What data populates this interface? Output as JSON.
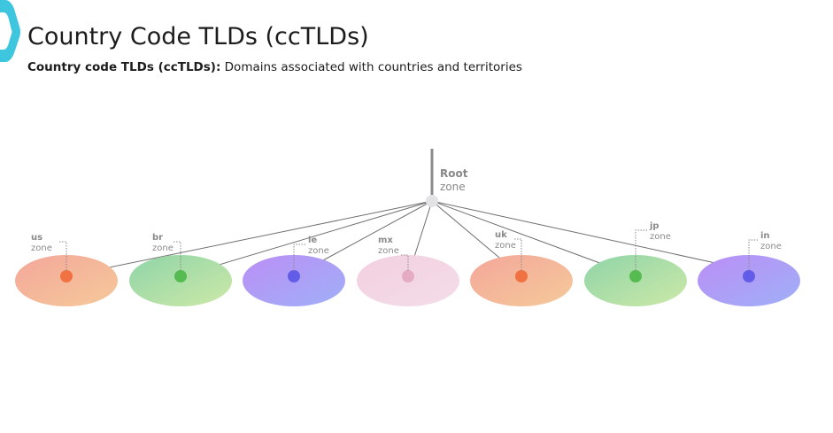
{
  "header": {
    "title": "Country Code TLDs (ccTLDs)",
    "subtitle_bold": "Country code TLDs (ccTLDs):",
    "subtitle_rest": " Domains associated with countries and territories"
  },
  "root": {
    "name": "Root",
    "zone": "zone"
  },
  "zones": [
    {
      "name": "us",
      "zone": "zone",
      "scheme": "orange"
    },
    {
      "name": "br",
      "zone": "zone",
      "scheme": "green"
    },
    {
      "name": "ie",
      "zone": "zone",
      "scheme": "purple"
    },
    {
      "name": "mx",
      "zone": "zone",
      "scheme": "pink"
    },
    {
      "name": "uk",
      "zone": "zone",
      "scheme": "orange"
    },
    {
      "name": "jp",
      "zone": "zone",
      "scheme": "green"
    },
    {
      "name": "in",
      "zone": "zone",
      "scheme": "purple"
    }
  ],
  "colors": {
    "orange": [
      "#f4a79a",
      "#f5c99a",
      "#f06a3a"
    ],
    "green": [
      "#8fd4a8",
      "#cde9a8",
      "#4cb848"
    ],
    "purple": [
      "#bb8ef5",
      "#9fb0f7",
      "#5a55e8"
    ],
    "pink": [
      "#f3cfe0",
      "#f3dde8",
      "#e3a6c0"
    ],
    "logo": "#3fc6df"
  }
}
